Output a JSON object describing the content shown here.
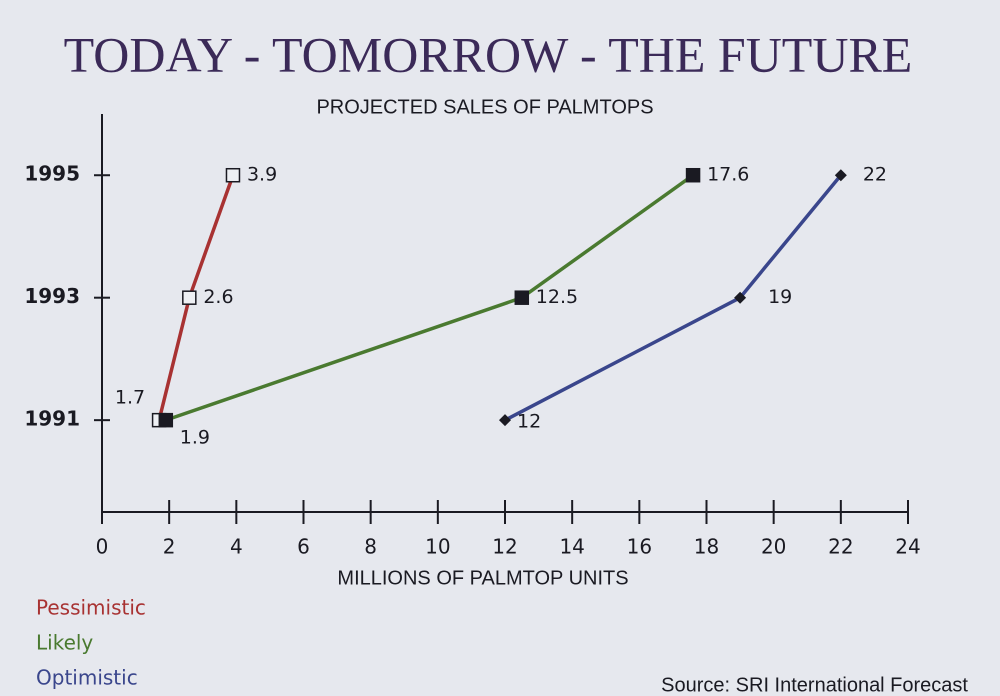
{
  "chart_data": {
    "type": "line",
    "title": "TODAY - TOMORROW - THE FUTURE",
    "subtitle": "PROJECTED SALES OF PALMTOPS",
    "x_label": "MILLIONS OF  PALMTOP UNITS",
    "source": "Source:  SRI  International Forecast",
    "y": [
      1991,
      1993,
      1995
    ],
    "ylim": [
      1989.5,
      1996
    ],
    "yticks": [
      1991,
      1993,
      1995
    ],
    "xlim": [
      0,
      24
    ],
    "xticks": [
      0,
      2,
      4,
      6,
      8,
      10,
      12,
      14,
      16,
      18,
      20,
      22,
      24
    ],
    "series": [
      {
        "name": "Pessimistic",
        "color": "#a83232",
        "marker": "square-open",
        "values": [
          1.7,
          2.6,
          3.9
        ]
      },
      {
        "name": "Likely",
        "color": "#4a7a30",
        "marker": "square",
        "values": [
          1.9,
          12.5,
          17.6
        ]
      },
      {
        "name": "Optimistic",
        "color": "#3a468c",
        "marker": "diamond",
        "values": [
          12,
          19,
          22
        ]
      }
    ]
  }
}
